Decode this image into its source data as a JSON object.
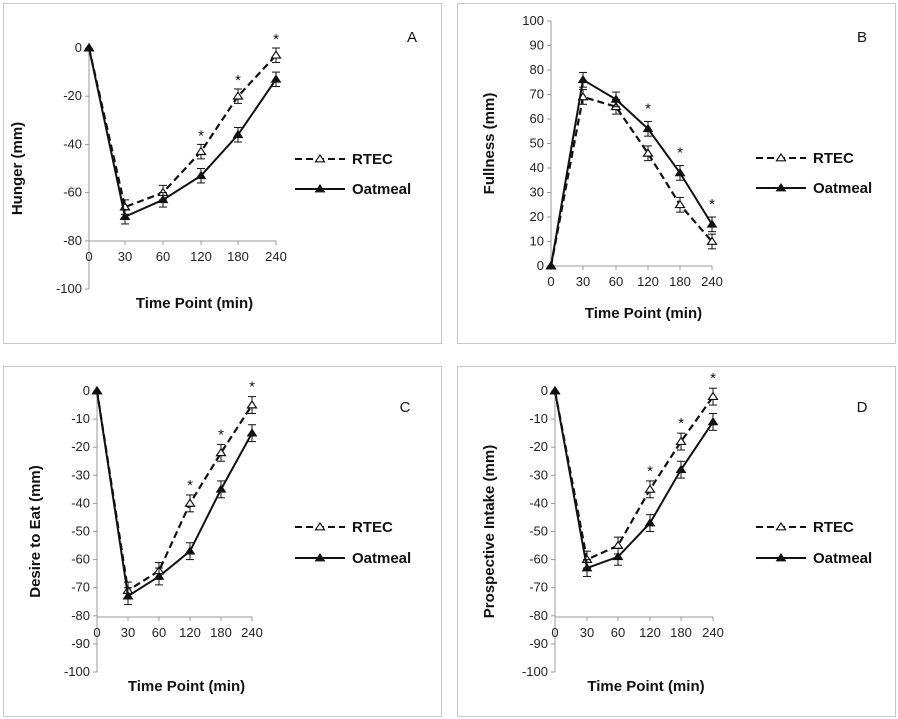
{
  "chart_data": [
    {
      "type": "line",
      "panel_label": "A",
      "ylabel": "Hunger (mm)",
      "xlabel": "Time Point (min)",
      "x": [
        "0",
        "30",
        "60",
        "120",
        "180",
        "240"
      ],
      "ylim": [
        -100,
        0
      ],
      "yticks": [
        "0",
        "-20",
        "-40",
        "-60",
        "-80",
        "-100"
      ],
      "series": [
        {
          "name": "RTEC",
          "style": "dashed",
          "marker": "open-triangle",
          "values": [
            0,
            -66,
            -60,
            -43,
            -20,
            -3
          ],
          "errors": [
            0,
            3,
            3,
            3,
            3,
            3
          ]
        },
        {
          "name": "Oatmeal",
          "style": "solid",
          "marker": "filled-triangle",
          "values": [
            0,
            -70,
            -63,
            -53,
            -36,
            -13
          ],
          "errors": [
            0,
            3,
            3,
            3,
            3,
            3
          ]
        }
      ],
      "significance_marks": [
        "",
        "",
        "",
        "*",
        "*",
        "*"
      ],
      "legend_position": "right"
    },
    {
      "type": "line",
      "panel_label": "B",
      "ylabel": "Fullness (mm)",
      "xlabel": "Time Point (min)",
      "x": [
        "0",
        "30",
        "60",
        "120",
        "180",
        "240"
      ],
      "ylim": [
        0,
        100
      ],
      "yticks": [
        "100",
        "90",
        "80",
        "70",
        "60",
        "50",
        "40",
        "30",
        "20",
        "10",
        "0"
      ],
      "series": [
        {
          "name": "RTEC",
          "style": "dashed",
          "marker": "open-triangle",
          "values": [
            0,
            69,
            65,
            46,
            25,
            10
          ],
          "errors": [
            0,
            3,
            3,
            3,
            3,
            3
          ]
        },
        {
          "name": "Oatmeal",
          "style": "solid",
          "marker": "filled-triangle",
          "values": [
            0,
            76,
            68,
            56,
            38,
            17
          ],
          "errors": [
            0,
            3,
            3,
            3,
            3,
            3
          ]
        }
      ],
      "significance_marks": [
        "",
        "",
        "",
        "*",
        "*",
        "*"
      ],
      "legend_position": "right"
    },
    {
      "type": "line",
      "panel_label": "C",
      "ylabel": "Desire to Eat (mm)",
      "xlabel": "Time Point (min)",
      "x": [
        "0",
        "30",
        "60",
        "120",
        "180",
        "240"
      ],
      "ylim": [
        -100,
        0
      ],
      "yticks": [
        "0",
        "-10",
        "-20",
        "-30",
        "-40",
        "-50",
        "-60",
        "-70",
        "-80",
        "-90",
        "-100"
      ],
      "series": [
        {
          "name": "RTEC",
          "style": "dashed",
          "marker": "open-triangle",
          "values": [
            0,
            -71,
            -64,
            -40,
            -22,
            -5
          ],
          "errors": [
            0,
            3,
            3,
            3,
            3,
            3
          ]
        },
        {
          "name": "Oatmeal",
          "style": "solid",
          "marker": "filled-triangle",
          "values": [
            0,
            -73,
            -66,
            -57,
            -35,
            -15
          ],
          "errors": [
            0,
            3,
            3,
            3,
            3,
            3
          ]
        }
      ],
      "significance_marks": [
        "",
        "",
        "",
        "*",
        "*",
        "*"
      ],
      "legend_position": "right"
    },
    {
      "type": "line",
      "panel_label": "D",
      "ylabel": "Prospective Intake (mm)",
      "xlabel": "Time Point (min)",
      "x": [
        "0",
        "30",
        "60",
        "120",
        "180",
        "240"
      ],
      "ylim": [
        -100,
        0
      ],
      "yticks": [
        "0",
        "-10",
        "-20",
        "-30",
        "-40",
        "-50",
        "-60",
        "-70",
        "-80",
        "-90",
        "-100"
      ],
      "series": [
        {
          "name": "RTEC",
          "style": "dashed",
          "marker": "open-triangle",
          "values": [
            0,
            -60,
            -55,
            -35,
            -18,
            -2
          ],
          "errors": [
            0,
            3,
            3,
            3,
            3,
            3
          ]
        },
        {
          "name": "Oatmeal",
          "style": "solid",
          "marker": "filled-triangle",
          "values": [
            0,
            -63,
            -59,
            -47,
            -28,
            -11
          ],
          "errors": [
            0,
            3,
            3,
            3,
            3,
            3
          ]
        }
      ],
      "significance_marks": [
        "",
        "",
        "",
        "*",
        "*",
        "*"
      ],
      "legend_position": "right"
    }
  ]
}
